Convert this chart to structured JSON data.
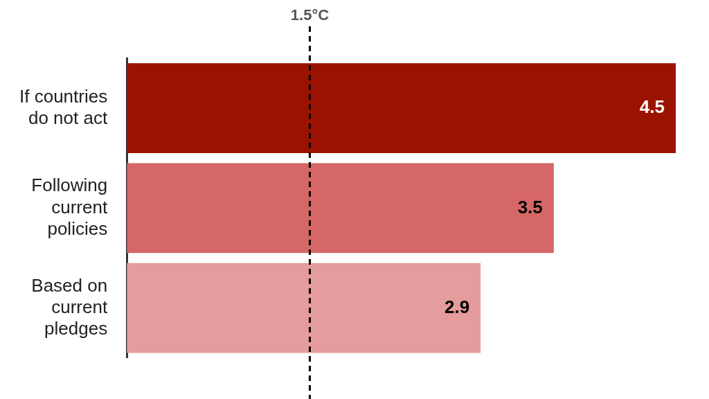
{
  "chart_data": {
    "type": "bar",
    "orientation": "horizontal",
    "categories": [
      "If countries do not act",
      "Following current policies",
      "Based on current pledges"
    ],
    "values": [
      4.5,
      3.5,
      2.9
    ],
    "colors": [
      "#9b1300",
      "#d56767",
      "#e59c9c"
    ],
    "xlim": [
      0,
      4.5
    ],
    "tick_labels": "y",
    "data_labels": true,
    "grid": false,
    "legend": false,
    "ref_lines": [
      {
        "axis": "x",
        "value": 1.5,
        "label": "1.5°C",
        "color": "#000000",
        "line_style": "dashed"
      }
    ]
  }
}
